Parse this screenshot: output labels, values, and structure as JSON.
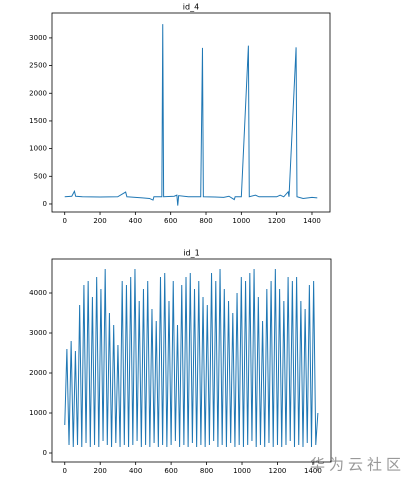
{
  "chart_data": [
    {
      "type": "line",
      "title": "id_4",
      "color": "#1f77b4",
      "x": [
        0,
        40,
        55,
        62,
        100,
        200,
        300,
        345,
        352,
        400,
        440,
        480,
        500,
        505,
        550,
        555,
        560,
        620,
        635,
        640,
        645,
        700,
        770,
        780,
        785,
        850,
        900,
        930,
        960,
        965,
        1000,
        1040,
        1045,
        1080,
        1100,
        1200,
        1220,
        1240,
        1265,
        1270,
        1310,
        1315,
        1350,
        1400,
        1430
      ],
      "values": [
        130,
        140,
        230,
        140,
        130,
        125,
        130,
        215,
        130,
        120,
        110,
        100,
        70,
        130,
        130,
        3250,
        130,
        140,
        160,
        -30,
        150,
        130,
        130,
        2820,
        130,
        125,
        120,
        140,
        80,
        130,
        130,
        2860,
        130,
        160,
        130,
        130,
        160,
        130,
        220,
        130,
        2830,
        130,
        100,
        120,
        110
      ],
      "xlim": [
        -72,
        1502
      ],
      "ylim": [
        -145,
        3450
      ],
      "xticks": [
        0,
        200,
        400,
        600,
        800,
        1000,
        1200,
        1400
      ],
      "yticks": [
        0,
        500,
        1000,
        1500,
        2000,
        2500,
        3000
      ]
    },
    {
      "type": "line",
      "title": "id_1",
      "color": "#1f77b4",
      "x": [
        0,
        12,
        24,
        36,
        48,
        60,
        72,
        84,
        96,
        108,
        120,
        132,
        144,
        156,
        168,
        180,
        192,
        204,
        216,
        228,
        240,
        252,
        264,
        276,
        288,
        300,
        312,
        324,
        336,
        348,
        360,
        372,
        384,
        396,
        408,
        420,
        432,
        444,
        456,
        468,
        480,
        492,
        504,
        516,
        528,
        540,
        552,
        564,
        576,
        588,
        600,
        612,
        624,
        636,
        648,
        660,
        672,
        684,
        696,
        708,
        720,
        732,
        744,
        756,
        768,
        780,
        792,
        804,
        816,
        828,
        840,
        852,
        864,
        876,
        888,
        900,
        912,
        924,
        936,
        948,
        960,
        972,
        984,
        996,
        1008,
        1020,
        1032,
        1044,
        1056,
        1068,
        1080,
        1092,
        1104,
        1116,
        1128,
        1140,
        1152,
        1164,
        1176,
        1188,
        1200,
        1212,
        1224,
        1236,
        1248,
        1260,
        1272,
        1284,
        1296,
        1308,
        1320,
        1332,
        1344,
        1356,
        1368,
        1380,
        1392,
        1404,
        1416,
        1428
      ],
      "values": [
        700,
        2600,
        200,
        2800,
        150,
        2550,
        200,
        3700,
        150,
        4200,
        250,
        4300,
        150,
        3900,
        200,
        4400,
        150,
        4100,
        300,
        4600,
        200,
        3500,
        150,
        3200,
        250,
        2700,
        150,
        4300,
        200,
        4200,
        150,
        4400,
        200,
        4600,
        300,
        3800,
        150,
        4100,
        200,
        4300,
        150,
        3600,
        250,
        3300,
        150,
        4400,
        200,
        4500,
        150,
        3800,
        200,
        4300,
        300,
        3200,
        150,
        4200,
        200,
        4400,
        150,
        4500,
        250,
        4100,
        150,
        4300,
        200,
        3900,
        150,
        3700,
        200,
        4500,
        300,
        4300,
        150,
        4600,
        200,
        4100,
        150,
        3800,
        250,
        3500,
        150,
        4000,
        200,
        4400,
        150,
        4300,
        200,
        4500,
        300,
        4600,
        150,
        3900,
        200,
        3300,
        150,
        4100,
        250,
        4300,
        150,
        4600,
        200,
        4100,
        150,
        3800,
        200,
        4400,
        300,
        4300,
        150,
        4400,
        200,
        3800,
        150,
        3600,
        250,
        4200,
        150,
        4300,
        200,
        1000
      ],
      "xlim": [
        -72,
        1502
      ],
      "ylim": [
        -225,
        4850
      ],
      "xticks": [
        0,
        200,
        400,
        600,
        800,
        1000,
        1200,
        1400
      ],
      "yticks": [
        0,
        1000,
        2000,
        3000,
        4000
      ]
    }
  ],
  "watermark": "华为云社区"
}
